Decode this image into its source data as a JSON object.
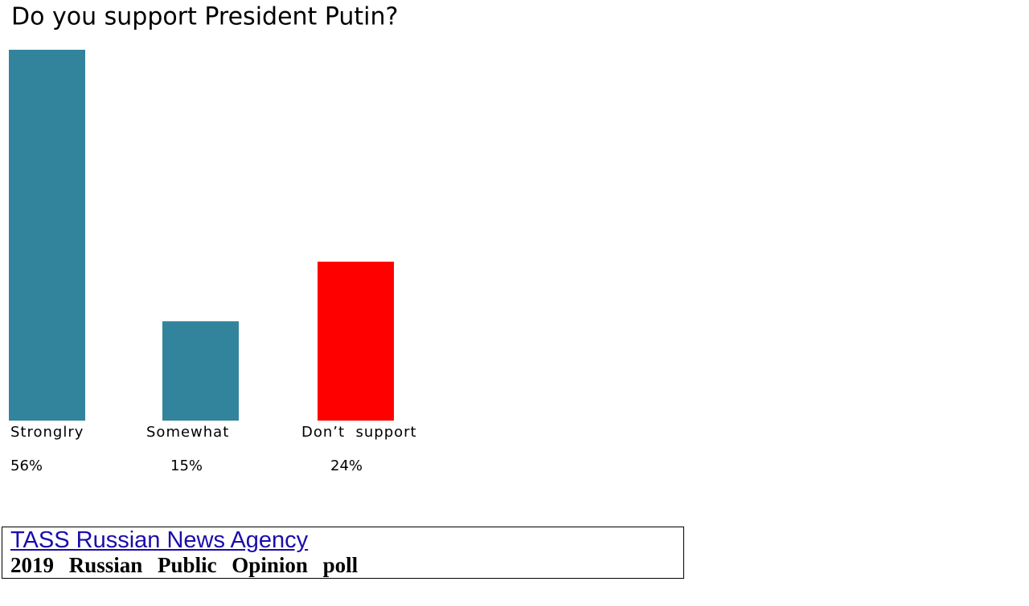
{
  "chart_data": {
    "type": "bar",
    "title": "Do you support President Putin?",
    "categories": [
      "Stronglry",
      "Somewhat",
      "Don’t  support"
    ],
    "values": [
      56,
      15,
      24
    ],
    "value_labels": [
      "56%",
      "15%",
      "24%"
    ],
    "colors": [
      "#31849b",
      "#31849b",
      "#ff0000"
    ],
    "source": "TASS Russian News Agency",
    "note": "2019  Russian  Public  Opinion  poll"
  }
}
